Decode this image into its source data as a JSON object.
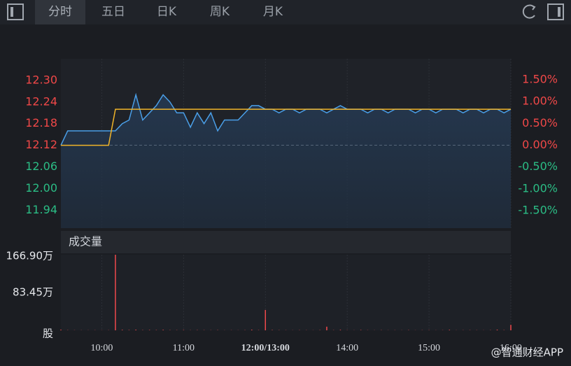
{
  "tabs": [
    "分时",
    "五日",
    "日K",
    "周K",
    "月K"
  ],
  "watermark": "@智通财经APP",
  "chart_data": [
    {
      "type": "line",
      "series": [
        {
          "color": "#4a9fe8",
          "values": [
            12.12,
            12.16,
            12.16,
            12.16,
            12.16,
            12.16,
            12.16,
            12.16,
            12.16,
            12.18,
            12.19,
            12.26,
            12.19,
            12.21,
            12.23,
            12.26,
            12.24,
            12.21,
            12.21,
            12.17,
            12.21,
            12.18,
            12.21,
            12.16,
            12.19,
            12.19,
            12.19,
            12.21,
            12.23,
            12.23,
            12.22,
            12.22,
            12.21,
            12.22,
            12.22,
            12.21,
            12.22,
            12.22,
            12.22,
            12.21,
            12.22,
            12.23,
            12.22,
            12.22,
            12.22,
            12.21,
            12.22,
            12.22,
            12.21,
            12.22,
            12.22,
            12.22,
            12.21,
            12.22,
            12.22,
            12.21,
            12.22,
            12.22,
            12.22,
            12.21,
            12.22,
            12.22,
            12.21,
            12.22,
            12.22,
            12.21,
            12.22
          ]
        },
        {
          "color": "#f0b429",
          "values": [
            12.12,
            12.12,
            12.12,
            12.12,
            12.12,
            12.12,
            12.12,
            12.12,
            12.22,
            12.22,
            12.22,
            12.22,
            12.22,
            12.22,
            12.22,
            12.22,
            12.22,
            12.22,
            12.22,
            12.22,
            12.22,
            12.22,
            12.22,
            12.22,
            12.22,
            12.22,
            12.22,
            12.22,
            12.22,
            12.22,
            12.22,
            12.22,
            12.22,
            12.22,
            12.22,
            12.22,
            12.22,
            12.22,
            12.22,
            12.22,
            12.22,
            12.22,
            12.22,
            12.22,
            12.22,
            12.22,
            12.22,
            12.22,
            12.22,
            12.22,
            12.22,
            12.22,
            12.22,
            12.22,
            12.22,
            12.22,
            12.22,
            12.22,
            12.22,
            12.22,
            12.22,
            12.22,
            12.22,
            12.22,
            12.22,
            12.22,
            12.22
          ]
        }
      ],
      "xlim": [
        0,
        66
      ],
      "xticks": [
        {
          "value": 6,
          "label": "10:00"
        },
        {
          "value": 18,
          "label": "11:00"
        },
        {
          "value": 30,
          "label": "12:00/13:00"
        },
        {
          "value": 42,
          "label": "14:00"
        },
        {
          "value": 54,
          "label": "15:00"
        },
        {
          "value": 66,
          "label": "16:00"
        }
      ],
      "ylim": [
        11.89,
        12.36
      ],
      "yticks": [
        {
          "value": 12.3,
          "label": "12.30"
        },
        12.24,
        12.18,
        12.12,
        12.06,
        {
          "value": 12.0,
          "label": "12.00"
        },
        11.94
      ],
      "y2lim": [
        -1.9,
        1.98
      ],
      "y2ticks": [
        {
          "value": 1.5,
          "label": "1.50%"
        },
        {
          "value": 1.0,
          "label": "1.00%"
        },
        {
          "value": 0.5,
          "label": "0.50%"
        },
        {
          "value": 0,
          "label": "0.00%"
        },
        {
          "value": -0.5,
          "label": "-0.50%"
        },
        {
          "value": -1.0,
          "label": "-1.00%"
        },
        {
          "value": -1.5,
          "label": "-1.50%"
        }
      ],
      "up_color": "#f04848",
      "down_color": "#2bbd85",
      "grid": true
    },
    {
      "type": "bar",
      "title": "成交量",
      "color": "#f0494c",
      "values": [
        1.5,
        0.5,
        0.4,
        0.3,
        0.3,
        0.4,
        0.3,
        0.4,
        166.9,
        1.2,
        0.8,
        1.5,
        0.6,
        0.9,
        0.7,
        1.2,
        0.6,
        0.5,
        0.8,
        0.4,
        0.6,
        0.5,
        0.4,
        0.6,
        0.3,
        0.4,
        0.3,
        0.5,
        1.5,
        0.6,
        45,
        0.8,
        0.5,
        0.4,
        0.3,
        0.5,
        0.4,
        0.3,
        0.6,
        8,
        0.5,
        1.2,
        0.4,
        0.3,
        0.8,
        0.4,
        0.3,
        0.5,
        0.3,
        0.4,
        0.3,
        0.6,
        0.3,
        0.4,
        0.5,
        0.3,
        0.4,
        1.2,
        0.3,
        0.4,
        0.5,
        0.4,
        0.3,
        0.5,
        1.5,
        0.6,
        12
      ],
      "xlim": [
        0,
        66
      ],
      "ylim": [
        0,
        166.9
      ],
      "yticks": [
        {
          "value": 166.9,
          "label": "166.90万"
        },
        {
          "value": 83.45,
          "label": "83.45万"
        },
        {
          "value": 0,
          "label": "股"
        }
      ]
    }
  ]
}
